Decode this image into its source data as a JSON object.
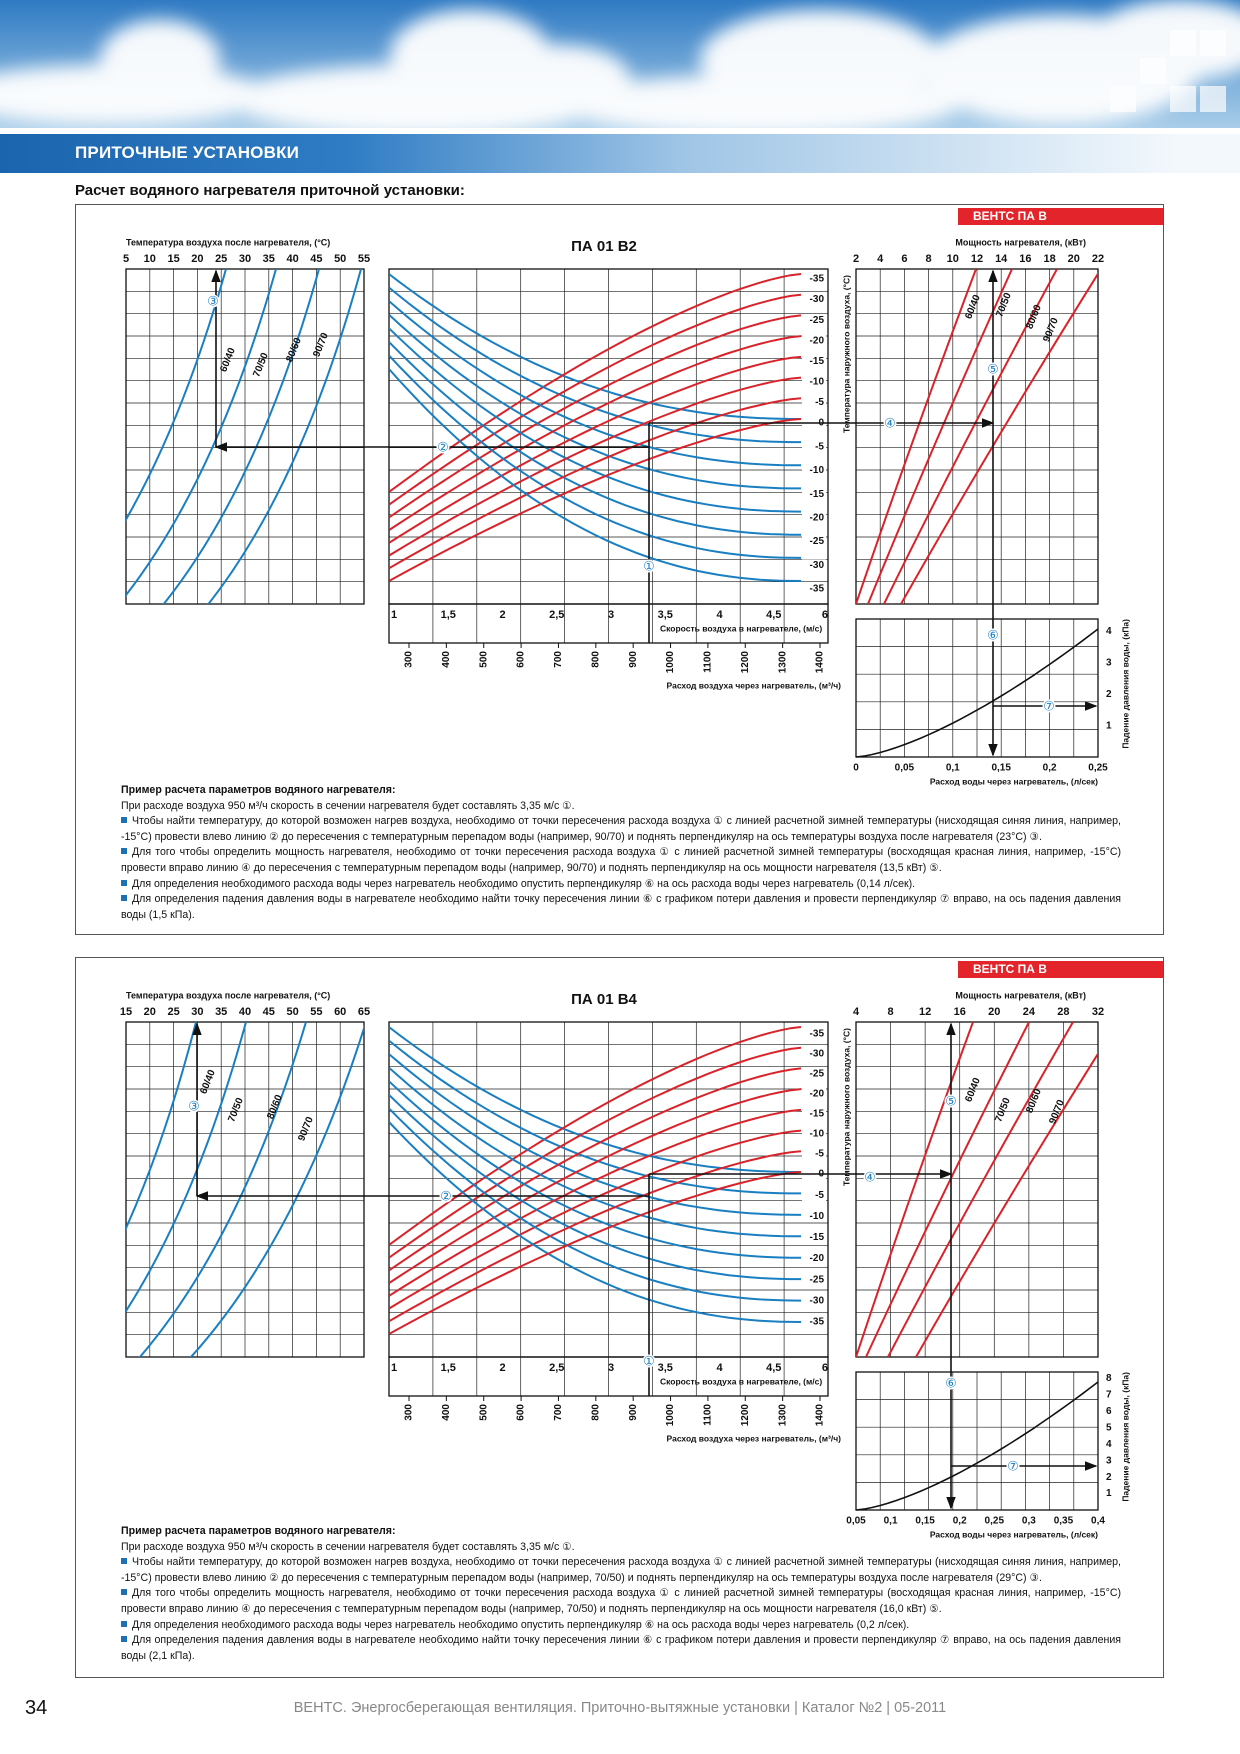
{
  "header": {
    "section": "ПРИТОЧНЫЕ УСТАНОВКИ",
    "subtitle": "Расчет водяного нагревателя приточной установки:"
  },
  "panels": [
    {
      "tag": "ВЕНТС ПА В",
      "title": "ПА 01 В2",
      "outlet_temp": {
        "label": "Температура воздуха после нагревателя, (°C)",
        "ticks": [
          5,
          10,
          15,
          20,
          25,
          30,
          35,
          40,
          45,
          50,
          55
        ]
      },
      "power": {
        "label": "Мощность нагревателя, (кВт)",
        "ticks": [
          2,
          4,
          6,
          8,
          10,
          12,
          14,
          16,
          18,
          20,
          22
        ]
      },
      "outdoor_temp": {
        "label": "Температура наружного воздуха, (°C)",
        "ticks": [
          "-35",
          "-30",
          "-25",
          "-20",
          "-15",
          "-10",
          "-5",
          "0",
          "-5",
          "-10",
          "-15",
          "-20",
          "-25",
          "-30",
          "-35"
        ]
      },
      "velocity": {
        "label": "Скорость воздуха в нагревателе, (м/с)",
        "ticks": [
          "1",
          "1,5",
          "2",
          "2,5",
          "3",
          "3,5",
          "4",
          "4,5",
          "6"
        ]
      },
      "airflow": {
        "label": "Расход воздуха через нагреватель, (м³/ч)",
        "ticks": [
          300,
          400,
          500,
          600,
          700,
          800,
          900,
          1000,
          1100,
          1200,
          1300,
          1400
        ]
      },
      "water_flow": {
        "label": "Расход воды через нагреватель, (л/сек)",
        "ticks": [
          "0",
          "0,05",
          "0,1",
          "0,15",
          "0,2",
          "0,25"
        ]
      },
      "pressure": {
        "label": "Падение давления воды, (кПа)",
        "ticks": [
          1,
          2,
          3,
          4
        ]
      },
      "curve_labels": [
        "60/40",
        "70/50",
        "80/60",
        "90/70"
      ],
      "markers": [
        "①",
        "②",
        "③",
        "④",
        "⑤",
        "⑥",
        "⑦"
      ],
      "example": {
        "heading": "Пример расчета параметров водяного нагревателя:",
        "intro": "При расходе воздуха 950 м³/ч скорость в сечении нагревателя будет составлять 3,35 м/с ①.",
        "bullets": [
          "Чтобы найти температуру, до которой возможен нагрев воздуха, необходимо от точки пересечения расхода воздуха ① с линией расчетной зимней температуры (нисходящая синяя линия, например, -15°C) провести влево линию ② до пересечения с температурным перепадом воды (например, 90/70) и поднять перпендикуляр на ось температуры воздуха после нагревателя (23°C) ③.",
          "Для того чтобы определить мощность нагревателя, необходимо от точки пересечения расхода воздуха ① с линией расчетной зимней температуры (восходящая красная линия, например, -15°C) провести вправо линию ④ до пересечения с температурным перепадом воды (например, 90/70) и поднять перпендикуляр на ось мощности нагревателя (13,5 кВт) ⑤.",
          "Для определения необходимого расхода воды через нагреватель необходимо опустить перпендикуляр ⑥ на ось расхода воды через нагреватель (0,14 л/сек).",
          "Для определения падения давления воды в нагревателе необходимо найти точку пересечения линии ⑥ с графиком потери давления и провести перпендикуляр ⑦ вправо, на ось падения давления воды (1,5 кПа)."
        ]
      }
    },
    {
      "tag": "ВЕНТС ПА В",
      "title": "ПА 01 В4",
      "outlet_temp": {
        "label": "Температура воздуха после нагревателя, (°C)",
        "ticks": [
          15,
          20,
          25,
          30,
          35,
          40,
          45,
          50,
          55,
          60,
          65
        ]
      },
      "power": {
        "label": "Мощность нагревателя, (кВт)",
        "ticks": [
          4,
          8,
          12,
          16,
          20,
          24,
          28,
          32
        ]
      },
      "outdoor_temp": {
        "label": "Температура наружного воздуха, (°C)",
        "ticks": [
          "-35",
          "-30",
          "-25",
          "-20",
          "-15",
          "-10",
          "-5",
          "0",
          "-5",
          "-10",
          "-15",
          "-20",
          "-25",
          "-30",
          "-35"
        ]
      },
      "velocity": {
        "label": "Скорость воздуха в нагревателе, (м/с)",
        "ticks": [
          "1",
          "1,5",
          "2",
          "2,5",
          "3",
          "3,5",
          "4",
          "4,5",
          "6"
        ]
      },
      "airflow": {
        "label": "Расход воздуха через нагреватель, (м³/ч)",
        "ticks": [
          300,
          400,
          500,
          600,
          700,
          800,
          900,
          1000,
          1100,
          1200,
          1300,
          1400
        ]
      },
      "water_flow": {
        "label": "Расход воды через нагреватель, (л/сек)",
        "ticks": [
          "0,05",
          "0,1",
          "0,15",
          "0,2",
          "0,25",
          "0,3",
          "0,35",
          "0,4"
        ]
      },
      "pressure": {
        "label": "Падение давления воды, (кПа)",
        "ticks": [
          1,
          2,
          3,
          4,
          5,
          6,
          7,
          8
        ]
      },
      "curve_labels": [
        "60/40",
        "70/50",
        "80/60",
        "90/70"
      ],
      "markers": [
        "①",
        "②",
        "③",
        "④",
        "⑤",
        "⑥",
        "⑦"
      ],
      "example": {
        "heading": "Пример расчета параметров водяного нагревателя:",
        "intro": "При расходе воздуха 950 м³/ч скорость в сечении нагревателя будет составлять 3,35 м/с ①.",
        "bullets": [
          "Чтобы найти температуру, до которой возможен нагрев воздуха, необходимо от точки пересечения расхода воздуха ① с линией расчетной зимней температуры (нисходящая синяя линия, например, -15°C) провести влево линию ② до пересечения с температурным перепадом воды (например, 70/50) и поднять перпендикуляр на ось температуры воздуха после нагревателя (29°C) ③.",
          "Для того чтобы определить мощность нагревателя, необходимо от точки пересечения расхода воздуха ① с линией расчетной зимней температуры (восходящая красная линия, например, -15°C) провести вправо линию ④ до пересечения с температурным перепадом воды (например, 70/50) и поднять перпендикуляр на ось мощности нагревателя (16,0 кВт) ⑤.",
          "Для определения необходимого расхода воды через нагреватель необходимо опустить перпендикуляр ⑥ на ось расхода воды через нагреватель (0,2 л/сек).",
          "Для определения падения давления воды в нагревателе необходимо найти точку пересечения линии ⑥ с графиком потери давления и провести перпендикуляр ⑦ вправо, на ось падения давления воды (2,1 кПа)."
        ]
      }
    }
  ],
  "footer": {
    "page": "34",
    "text": "ВЕНТС. Энергосберегающая вентиляция. Приточно-вытяжные установки | Каталог №2 | 05-2011"
  }
}
